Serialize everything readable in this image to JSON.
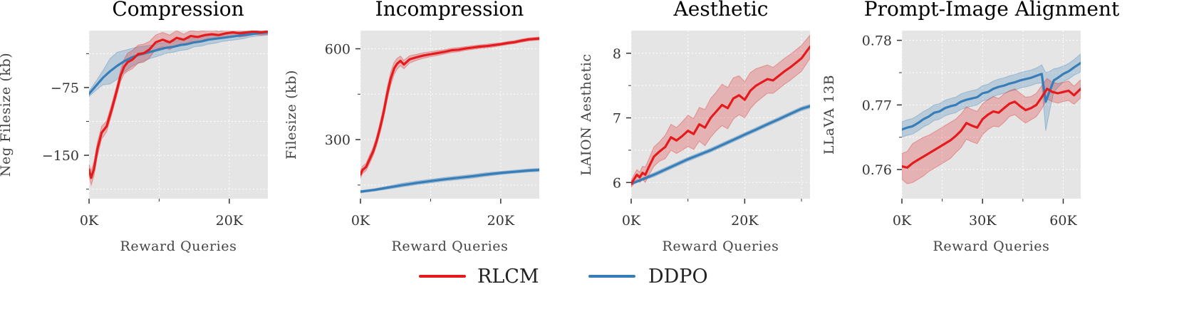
{
  "legend": [
    {
      "name": "RLCM",
      "color": "#e41a1c"
    },
    {
      "name": "DDPO",
      "color": "#377eb8"
    }
  ],
  "chart_data": [
    {
      "type": "line",
      "title": "Compression",
      "xlabel": "Reward Queries",
      "ylabel": "Neg Filesize (kb)",
      "xlim": [
        0,
        25500
      ],
      "ylim": [
        -198,
        -12
      ],
      "xticks": [
        {
          "v": 0,
          "label": "0K"
        },
        {
          "v": 20000,
          "label": "20K"
        }
      ],
      "xminor": [
        10000
      ],
      "yticks": [
        {
          "v": -75,
          "label": "−75"
        },
        {
          "v": -150,
          "label": "−150"
        }
      ],
      "yminor": [
        -37.5,
        -112.5,
        -187.5
      ],
      "series": [
        {
          "name": "RLCM",
          "x": [
            0,
            300,
            700,
            1200,
            1800,
            2500,
            3200,
            3900,
            4500,
            5000,
            5500,
            6200,
            7000,
            7800,
            8600,
            9500,
            10500,
            11500,
            12500,
            13500,
            14500,
            15500,
            16500,
            17500,
            18500,
            19500,
            20500,
            21500,
            22500,
            23500,
            24500,
            25500
          ],
          "y": [
            -166,
            -175,
            -165,
            -143,
            -125,
            -118,
            -100,
            -80,
            -62,
            -52,
            -47,
            -44,
            -38,
            -37,
            -33,
            -25,
            -22,
            -25,
            -20,
            -22,
            -18,
            -19,
            -17,
            -16,
            -17,
            -15,
            -14,
            -15,
            -14,
            -13,
            -14,
            -13
          ],
          "band": [
            6,
            8,
            8,
            8,
            7,
            6,
            6,
            6,
            6,
            8,
            10,
            10,
            10,
            10,
            9,
            8,
            8,
            8,
            8,
            6,
            6,
            6,
            5,
            5,
            4,
            4,
            4,
            4,
            4,
            3,
            3,
            3
          ]
        },
        {
          "name": "DDPO",
          "x": [
            0,
            1000,
            2000,
            3000,
            4000,
            5000,
            6000,
            7000,
            8000,
            9000,
            10000,
            11000,
            12000,
            13000,
            14000,
            15000,
            16000,
            17000,
            18000,
            19000,
            20000,
            21000,
            22000,
            23000,
            24000,
            25500
          ],
          "y": [
            -82,
            -73,
            -64,
            -57,
            -51,
            -46,
            -42,
            -39,
            -37,
            -35,
            -33,
            -31,
            -30,
            -28,
            -27,
            -25,
            -24,
            -22,
            -21,
            -20,
            -19,
            -18,
            -17,
            -16,
            -15,
            -14
          ],
          "band": [
            3,
            5,
            8,
            14,
            15,
            12,
            10,
            9,
            8,
            7,
            7,
            6,
            6,
            6,
            6,
            5,
            5,
            5,
            5,
            4,
            4,
            4,
            4,
            3,
            3,
            3
          ]
        }
      ]
    },
    {
      "type": "line",
      "title": "Incompression",
      "xlabel": "Reward Queries",
      "ylabel": "Filesize (kb)",
      "xlim": [
        0,
        25500
      ],
      "ylim": [
        105,
        660
      ],
      "xticks": [
        {
          "v": 0,
          "label": "0K"
        },
        {
          "v": 20000,
          "label": "20K"
        }
      ],
      "xminor": [
        10000
      ],
      "yticks": [
        {
          "v": 300,
          "label": "300"
        },
        {
          "v": 600,
          "label": "600"
        }
      ],
      "yminor": [
        150,
        450
      ],
      "series": [
        {
          "name": "RLCM",
          "x": [
            0,
            300,
            800,
            1300,
            1800,
            2300,
            2800,
            3300,
            3800,
            4300,
            4800,
            5200,
            5700,
            6200,
            7000,
            8000,
            9000,
            10000,
            11000,
            12000,
            13000,
            14000,
            15000,
            16000,
            17000,
            18000,
            19000,
            20000,
            21000,
            22000,
            23000,
            24000,
            25500
          ],
          "y": [
            185,
            200,
            210,
            235,
            260,
            295,
            340,
            390,
            450,
            500,
            535,
            550,
            560,
            548,
            565,
            572,
            578,
            582,
            586,
            590,
            595,
            597,
            601,
            604,
            607,
            609,
            612,
            615,
            619,
            622,
            627,
            631,
            634
          ],
          "band": [
            12,
            12,
            12,
            14,
            14,
            16,
            18,
            20,
            22,
            22,
            20,
            18,
            16,
            14,
            12,
            10,
            9,
            8,
            8,
            7,
            7,
            7,
            6,
            6,
            6,
            6,
            6,
            5,
            5,
            5,
            5,
            5,
            5
          ]
        },
        {
          "name": "DDPO",
          "x": [
            0,
            2000,
            4000,
            6000,
            8000,
            10000,
            12000,
            14000,
            16000,
            18000,
            20000,
            22000,
            24000,
            25500
          ],
          "y": [
            128,
            134,
            142,
            150,
            157,
            163,
            169,
            174,
            179,
            185,
            190,
            194,
            198,
            200
          ],
          "band": [
            4,
            4,
            5,
            6,
            6,
            6,
            6,
            6,
            6,
            6,
            5,
            5,
            5,
            5
          ]
        }
      ]
    },
    {
      "type": "line",
      "title": "Aesthetic",
      "xlabel": "Reward Queries",
      "ylabel": "LAION Aesthetic",
      "xlim": [
        0,
        31500
      ],
      "ylim": [
        5.75,
        8.35
      ],
      "xticks": [
        {
          "v": 0,
          "label": "0K"
        },
        {
          "v": 20000,
          "label": "20K"
        }
      ],
      "xminor": [
        10000,
        30000
      ],
      "yticks": [
        {
          "v": 6,
          "label": "6"
        },
        {
          "v": 7,
          "label": "7"
        },
        {
          "v": 8,
          "label": "8"
        }
      ],
      "yminor": [
        6.5,
        7.5
      ],
      "series": [
        {
          "name": "RLCM",
          "x": [
            0,
            500,
            1000,
            1500,
            2000,
            2500,
            3000,
            4000,
            5000,
            6000,
            7000,
            8000,
            9000,
            10000,
            11000,
            12000,
            13000,
            14000,
            15000,
            16000,
            17000,
            18000,
            19000,
            20000,
            21000,
            22000,
            23000,
            24000,
            25000,
            26000,
            27000,
            28000,
            29000,
            30000,
            31500
          ],
          "y": [
            5.98,
            6.05,
            6.12,
            6.08,
            6.15,
            6.12,
            6.22,
            6.4,
            6.48,
            6.55,
            6.7,
            6.65,
            6.72,
            6.8,
            6.75,
            6.9,
            6.85,
            7.0,
            7.1,
            7.2,
            7.15,
            7.3,
            7.35,
            7.28,
            7.42,
            7.5,
            7.55,
            7.6,
            7.58,
            7.65,
            7.72,
            7.78,
            7.85,
            7.92,
            8.1
          ],
          "band": [
            0.05,
            0.07,
            0.08,
            0.08,
            0.1,
            0.12,
            0.12,
            0.15,
            0.15,
            0.18,
            0.2,
            0.2,
            0.22,
            0.24,
            0.24,
            0.26,
            0.28,
            0.3,
            0.3,
            0.32,
            0.32,
            0.32,
            0.3,
            0.28,
            0.28,
            0.26,
            0.24,
            0.22,
            0.2,
            0.2,
            0.2,
            0.2,
            0.2,
            0.2,
            0.18
          ]
        },
        {
          "name": "DDPO",
          "x": [
            0,
            2000,
            4000,
            6000,
            8000,
            10000,
            12000,
            14000,
            16000,
            18000,
            20000,
            22000,
            24000,
            26000,
            28000,
            30000,
            31500
          ],
          "y": [
            5.98,
            6.05,
            6.12,
            6.2,
            6.28,
            6.36,
            6.43,
            6.5,
            6.58,
            6.66,
            6.74,
            6.82,
            6.9,
            6.98,
            7.06,
            7.14,
            7.18
          ],
          "band": [
            0.02,
            0.02,
            0.03,
            0.03,
            0.03,
            0.03,
            0.03,
            0.03,
            0.03,
            0.03,
            0.03,
            0.03,
            0.03,
            0.03,
            0.03,
            0.03,
            0.03
          ]
        }
      ]
    },
    {
      "type": "line",
      "title": "Prompt-Image Alignment",
      "xlabel": "Reward Queries",
      "ylabel": "LLaVA 13B",
      "xlim": [
        0,
        66500
      ],
      "ylim": [
        0.7555,
        0.7815
      ],
      "xticks": [
        {
          "v": 0,
          "label": "0K"
        },
        {
          "v": 30000,
          "label": "30K"
        },
        {
          "v": 60000,
          "label": "60K"
        }
      ],
      "xminor": [
        15000,
        45000
      ],
      "yticks": [
        {
          "v": 0.76,
          "label": "0.76"
        },
        {
          "v": 0.77,
          "label": "0.77"
        },
        {
          "v": 0.78,
          "label": "0.78"
        }
      ],
      "yminor": [
        0.765,
        0.775
      ],
      "series": [
        {
          "name": "RLCM",
          "x": [
            0,
            2000,
            4000,
            6000,
            8000,
            10000,
            12000,
            14000,
            16000,
            18000,
            20000,
            22000,
            24000,
            26000,
            28000,
            30000,
            32000,
            34000,
            36000,
            38000,
            40000,
            42000,
            44000,
            46000,
            48000,
            50000,
            52000,
            54000,
            56000,
            58000,
            60000,
            62000,
            64000,
            66500
          ],
          "y": [
            0.7605,
            0.7603,
            0.761,
            0.7615,
            0.762,
            0.7625,
            0.763,
            0.7635,
            0.764,
            0.7645,
            0.7652,
            0.766,
            0.7672,
            0.7668,
            0.7665,
            0.7678,
            0.7685,
            0.769,
            0.7688,
            0.7695,
            0.7702,
            0.7705,
            0.7698,
            0.7692,
            0.7695,
            0.77,
            0.7712,
            0.7725,
            0.772,
            0.7718,
            0.772,
            0.7722,
            0.7715,
            0.7725
          ],
          "band": [
            0.002,
            0.0025,
            0.003,
            0.003,
            0.003,
            0.0028,
            0.0028,
            0.0028,
            0.0028,
            0.0028,
            0.0026,
            0.0026,
            0.0025,
            0.0025,
            0.0025,
            0.0024,
            0.0023,
            0.0023,
            0.0022,
            0.0022,
            0.002,
            0.002,
            0.002,
            0.002,
            0.0018,
            0.0018,
            0.0018,
            0.0016,
            0.0015,
            0.0015,
            0.0015,
            0.0015,
            0.0014,
            0.0014
          ]
        },
        {
          "name": "DDPO",
          "x": [
            0,
            2000,
            4000,
            6000,
            8000,
            10000,
            12000,
            14000,
            16000,
            18000,
            20000,
            22000,
            24000,
            26000,
            28000,
            30000,
            32000,
            34000,
            36000,
            38000,
            40000,
            42000,
            44000,
            46000,
            48000,
            50000,
            52000,
            53500,
            55000,
            56500,
            58000,
            60000,
            62000,
            64000,
            66500
          ],
          "y": [
            0.7662,
            0.7665,
            0.7667,
            0.7672,
            0.7678,
            0.7682,
            0.7688,
            0.769,
            0.7695,
            0.7698,
            0.77,
            0.7705,
            0.7708,
            0.771,
            0.7712,
            0.7718,
            0.772,
            0.7725,
            0.7728,
            0.773,
            0.7733,
            0.7735,
            0.7738,
            0.774,
            0.7742,
            0.7745,
            0.7748,
            0.7705,
            0.7722,
            0.7738,
            0.7742,
            0.7748,
            0.7752,
            0.7758,
            0.7765
          ],
          "band": [
            0.0012,
            0.0012,
            0.0012,
            0.0012,
            0.0012,
            0.0012,
            0.0012,
            0.0012,
            0.0012,
            0.0012,
            0.0012,
            0.0012,
            0.0012,
            0.0012,
            0.0012,
            0.0012,
            0.0012,
            0.0012,
            0.0012,
            0.0012,
            0.0012,
            0.0012,
            0.0012,
            0.0012,
            0.0012,
            0.0012,
            0.0014,
            0.0045,
            0.003,
            0.0018,
            0.0015,
            0.0012,
            0.0012,
            0.0012,
            0.0014
          ]
        }
      ]
    }
  ]
}
